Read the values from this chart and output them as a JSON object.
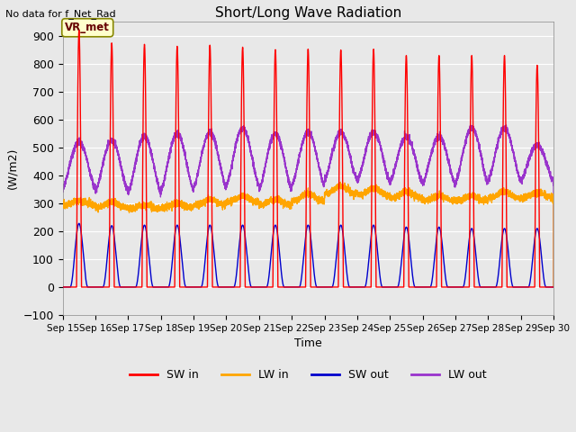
{
  "title": "Short/Long Wave Radiation",
  "xlabel": "Time",
  "ylabel": "(W/m2)",
  "top_left_text": "No data for f_Net_Rad",
  "legend_label": "VR_met",
  "ylim": [
    -100,
    950
  ],
  "yticks": [
    -100,
    0,
    100,
    200,
    300,
    400,
    500,
    600,
    700,
    800,
    900
  ],
  "xtick_labels": [
    "Sep 15",
    "Sep 16",
    "Sep 17",
    "Sep 18",
    "Sep 19",
    "Sep 20",
    "Sep 21",
    "Sep 22",
    "Sep 23",
    "Sep 24",
    "Sep 25",
    "Sep 26",
    "Sep 27",
    "Sep 28",
    "Sep 29",
    "Sep 30"
  ],
  "colors": {
    "SW_in": "#ff0000",
    "LW_in": "#ffa500",
    "SW_out": "#0000cc",
    "LW_out": "#9933cc"
  },
  "fig_bg_color": "#e8e8e8",
  "plot_bg_color": "#e8e8e8",
  "n_days": 15,
  "sw_in_peaks": [
    920,
    875,
    870,
    863,
    867,
    860,
    851,
    853,
    850,
    853,
    830,
    830,
    830,
    830,
    795
  ],
  "sw_out_peaks": [
    228,
    220,
    222,
    222,
    222,
    222,
    222,
    222,
    222,
    222,
    215,
    215,
    210,
    210,
    210
  ],
  "lw_in_base": [
    295,
    285,
    280,
    285,
    295,
    305,
    295,
    310,
    335,
    330,
    320,
    310,
    310,
    320,
    320
  ],
  "lw_in_bump": [
    15,
    20,
    15,
    15,
    20,
    22,
    20,
    25,
    28,
    25,
    22,
    18,
    18,
    22,
    20
  ],
  "lw_out_night": [
    355,
    345,
    340,
    348,
    358,
    365,
    350,
    365,
    385,
    380,
    375,
    370,
    375,
    380,
    380
  ],
  "lw_out_peaks": [
    520,
    525,
    540,
    550,
    555,
    570,
    550,
    555,
    555,
    555,
    540,
    540,
    570,
    570,
    510
  ]
}
